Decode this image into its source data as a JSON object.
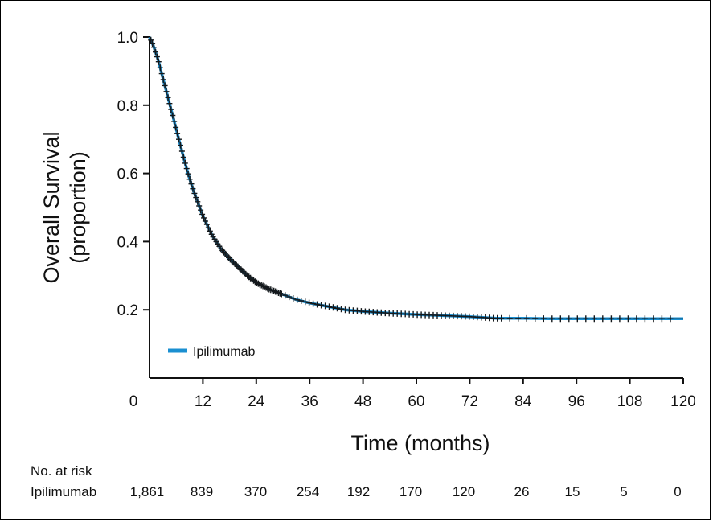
{
  "chart_data": {
    "type": "line",
    "xlabel": "Time (months)",
    "ylabel": [
      "Overall Survival",
      "(proportion)"
    ],
    "x_ticks": [
      0,
      12,
      24,
      36,
      48,
      60,
      72,
      84,
      96,
      108,
      120
    ],
    "y_ticks": [
      {
        "value": 0.2,
        "label": "0.2"
      },
      {
        "value": 0.4,
        "label": "0.4"
      },
      {
        "value": 0.6,
        "label": "0.6"
      },
      {
        "value": 0.8,
        "label": "0.8"
      },
      {
        "value": 1.0,
        "label": "1.0"
      }
    ],
    "xlim": [
      0,
      120
    ],
    "ylim": [
      0,
      1.0
    ],
    "series": [
      {
        "name": "Ipilimumab",
        "color": "#1a8fd1",
        "x": [
          0,
          1,
          2,
          3,
          4,
          5,
          6,
          7,
          8,
          9,
          10,
          11,
          12,
          14,
          16,
          18,
          20,
          22,
          24,
          27,
          30,
          33,
          36,
          40,
          44,
          48,
          54,
          60,
          66,
          72,
          78,
          84,
          90,
          96,
          102,
          108,
          114,
          120
        ],
        "y": [
          1.0,
          0.97,
          0.93,
          0.88,
          0.83,
          0.78,
          0.73,
          0.68,
          0.63,
          0.585,
          0.545,
          0.51,
          0.475,
          0.42,
          0.38,
          0.35,
          0.325,
          0.3,
          0.28,
          0.26,
          0.245,
          0.23,
          0.22,
          0.21,
          0.2,
          0.195,
          0.19,
          0.186,
          0.183,
          0.18,
          0.175,
          0.175,
          0.174,
          0.174,
          0.174,
          0.174,
          0.174,
          0.174
        ]
      }
    ],
    "censor_marks": true,
    "legend": {
      "label": "Ipilimumab",
      "position": "lower-left"
    },
    "grid": false,
    "risk_table": {
      "title": "No. at risk",
      "row_label": "Ipilimumab",
      "values": [
        "1,861",
        "839",
        "370",
        "254",
        "192",
        "170",
        "120",
        "26",
        "15",
        "5",
        "0"
      ]
    }
  }
}
